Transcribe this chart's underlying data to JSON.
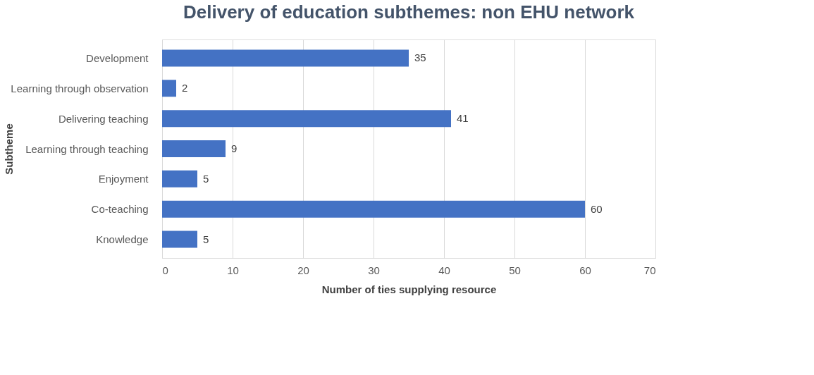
{
  "chart_data": {
    "type": "bar",
    "orientation": "horizontal",
    "title": "Delivery of education subthemes: non EHU network",
    "xlabel": "Number of ties supplying resource",
    "ylabel": "Subtheme",
    "categories": [
      "Development",
      "Learning through observation",
      "Delivering teaching",
      "Learning through teaching",
      "Enjoyment",
      "Co-teaching",
      "Knowledge"
    ],
    "values": [
      35,
      2,
      41,
      9,
      5,
      60,
      5
    ],
    "color": "#4472c4",
    "xlim": [
      0,
      70
    ],
    "xticks": [
      0,
      10,
      20,
      30,
      40,
      50,
      60,
      70
    ],
    "grid": "x",
    "data_labels": true
  }
}
